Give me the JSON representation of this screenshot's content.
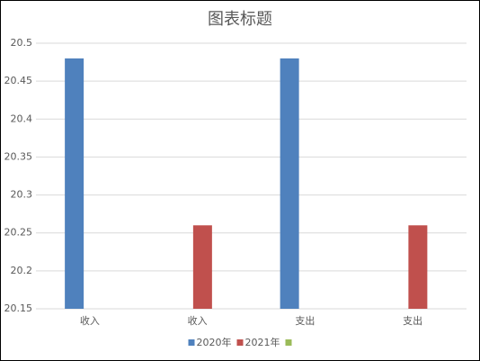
{
  "chart_data": {
    "type": "bar",
    "title": "图表标题",
    "categories": [
      "收入",
      "收入",
      "支出",
      "支出"
    ],
    "series": [
      {
        "name": "2020年",
        "color": "#4f81bd",
        "values": [
          20.48,
          null,
          20.48,
          null
        ]
      },
      {
        "name": "2021年",
        "color": "#c0504d",
        "values": [
          null,
          20.26,
          null,
          20.26
        ]
      },
      {
        "color": "#9bbb59",
        "values": [
          null,
          null,
          null,
          null
        ]
      }
    ],
    "ylim": [
      20.15,
      20.5
    ],
    "yticks": [
      20.15,
      20.2,
      20.25,
      20.3,
      20.35,
      20.4,
      20.45,
      20.5
    ],
    "grid": true,
    "legend": "bottom"
  }
}
